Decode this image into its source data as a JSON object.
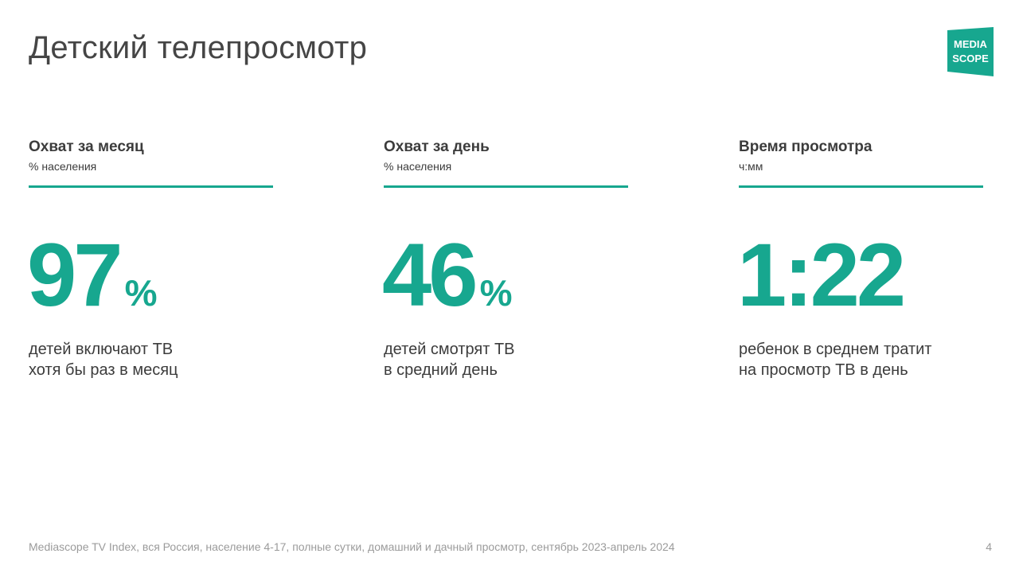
{
  "title": "Детский телепросмотр",
  "logo": {
    "line1": "MEDIA",
    "line2": "SCOPE",
    "color": "#17a78f"
  },
  "accent_color": "#17a78f",
  "metrics": [
    {
      "label": "Охват за месяц",
      "unit": "% населения",
      "value": "97",
      "suffix": "%",
      "description_line1": "детей включают ТВ",
      "description_line2": "хотя бы раз в месяц"
    },
    {
      "label": "Охват за день",
      "unit": "% населения",
      "value": "46",
      "suffix": "%",
      "description_line1": "детей смотрят ТВ",
      "description_line2": "в средний день"
    },
    {
      "label": "Время просмотра",
      "unit": "ч:мм",
      "value": "1:22",
      "suffix": "",
      "description_line1": "ребенок в среднем тратит",
      "description_line2": "на просмотр ТВ в день"
    }
  ],
  "footnote": "Mediascope TV Index, вся Россия, население 4-17, полные сутки, домашний и дачный просмотр, сентябрь 2023-апрель 2024",
  "page_number": "4"
}
